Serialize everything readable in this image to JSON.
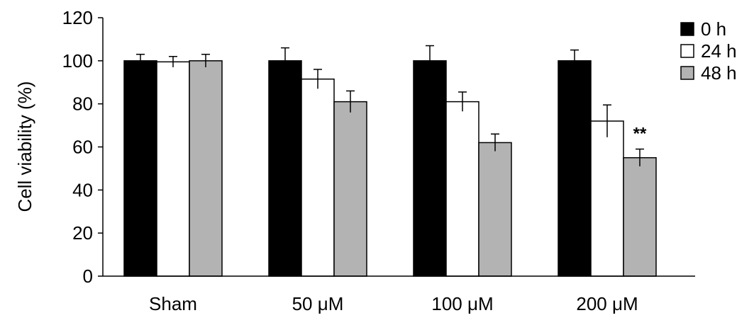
{
  "chart_data": {
    "type": "bar",
    "title": "",
    "xlabel": "",
    "ylabel": "Cell viability (%)",
    "ylim": [
      0,
      120
    ],
    "yticks": [
      0,
      20,
      40,
      60,
      80,
      100,
      120
    ],
    "grid": false,
    "legend_position": "right",
    "categories": [
      "Sham",
      "50 μM",
      "100 μM",
      "200 μM"
    ],
    "series": [
      {
        "name": "0 h",
        "color": "#000000",
        "values": [
          100,
          100,
          100,
          100
        ],
        "errors": [
          3,
          6,
          7,
          5
        ]
      },
      {
        "name": "24 h",
        "color": "#ffffff",
        "values": [
          99.5,
          91.5,
          81,
          72
        ],
        "errors": [
          2.5,
          4.5,
          4.5,
          7.5
        ]
      },
      {
        "name": "48 h",
        "color": "#b3b3b3",
        "values": [
          100,
          81,
          62,
          55
        ],
        "errors": [
          3,
          5,
          4,
          4
        ]
      }
    ],
    "annotations": [
      {
        "text": "**",
        "category_index": 3,
        "series_index": 2
      }
    ]
  }
}
